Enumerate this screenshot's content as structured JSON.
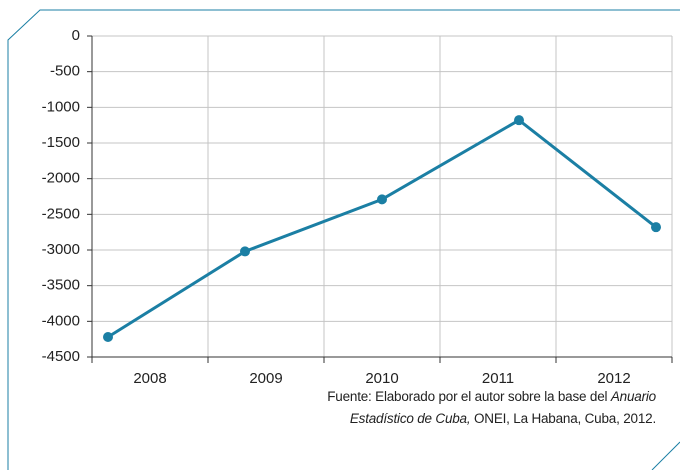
{
  "chart_data": {
    "type": "line",
    "categories": [
      "2008",
      "2009",
      "2010",
      "2011",
      "2012"
    ],
    "series": [
      {
        "name": null,
        "color": "#1b7fa4",
        "values": [
          -4220,
          -3020,
          -2290,
          -1180,
          -2680
        ]
      }
    ],
    "ylim": [
      -4500,
      0
    ],
    "yticks": [
      0,
      -500,
      -1000,
      -1500,
      -2000,
      -2500,
      -3000,
      -3500,
      -4000,
      -4500
    ],
    "grid": true,
    "source": [
      "Fuente: Elaborado por el autor sobre la base del ",
      "Anuario",
      "Estadístico de Cuba,",
      " ONEI, La Habana, Cuba, 2012."
    ]
  }
}
